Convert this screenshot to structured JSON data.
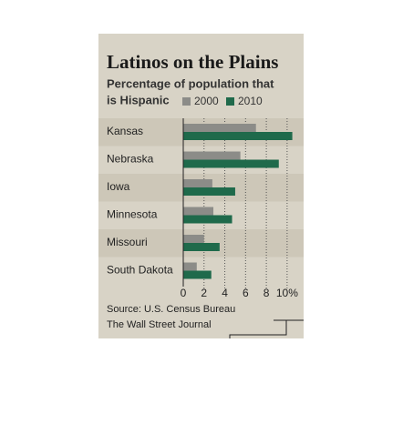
{
  "chart_data": {
    "type": "bar",
    "orientation": "horizontal",
    "title": "Latinos on the Plains",
    "subtitle": [
      "Percentage of population that",
      "is Hispanic"
    ],
    "categories": [
      "Kansas",
      "Nebraska",
      "Iowa",
      "Minnesota",
      "Missouri",
      "South Dakota"
    ],
    "series": [
      {
        "name": "2000",
        "color": "#8c8c88",
        "values": [
          7.0,
          5.5,
          2.8,
          2.9,
          2.0,
          1.3
        ]
      },
      {
        "name": "2010",
        "color": "#1f6a4b",
        "values": [
          10.5,
          9.2,
          5.0,
          4.7,
          3.5,
          2.7
        ]
      }
    ],
    "xlim": [
      0,
      10.8
    ],
    "xticks": [
      0,
      2,
      4,
      6,
      8,
      {
        "value": 10,
        "label": "10%"
      }
    ],
    "grid": true,
    "sources": [
      "Source: U.S. Census Bureau",
      "The Wall Street Journal"
    ]
  }
}
